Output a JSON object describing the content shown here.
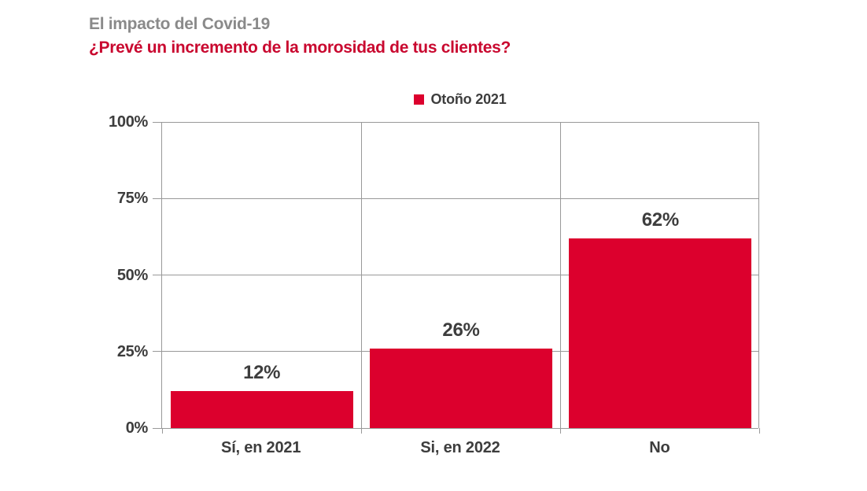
{
  "header": {
    "title": "El impacto del Covid-19",
    "subtitle": "¿Prevé un incremento de la morosidad de tus clientes?"
  },
  "legend": {
    "label": "Otoño 2021"
  },
  "chart_data": {
    "type": "bar",
    "title": "El impacto del Covid-19",
    "subtitle": "¿Prevé un incremento de la morosidad de tus clientes?",
    "legend_entries": [
      "Otoño 2021"
    ],
    "legend_position": "top-center",
    "categories": [
      "Sí, en 2021",
      "Si, en 2022",
      "No"
    ],
    "values": [
      12,
      26,
      62
    ],
    "value_labels": [
      "12%",
      "26%",
      "62%"
    ],
    "xlabel": "",
    "ylabel": "",
    "ylim": [
      0,
      100
    ],
    "yticks": [
      0,
      25,
      50,
      75,
      100
    ],
    "ytick_labels": [
      "0%",
      "25%",
      "50%",
      "75%",
      "100%"
    ],
    "grid": true
  },
  "colors": {
    "bar_red": "#DC002D",
    "subtitle_red": "#C9082F",
    "title_gray": "#8A8A8A",
    "text_dark": "#3D3D3D",
    "grid_gray": "#999999"
  }
}
